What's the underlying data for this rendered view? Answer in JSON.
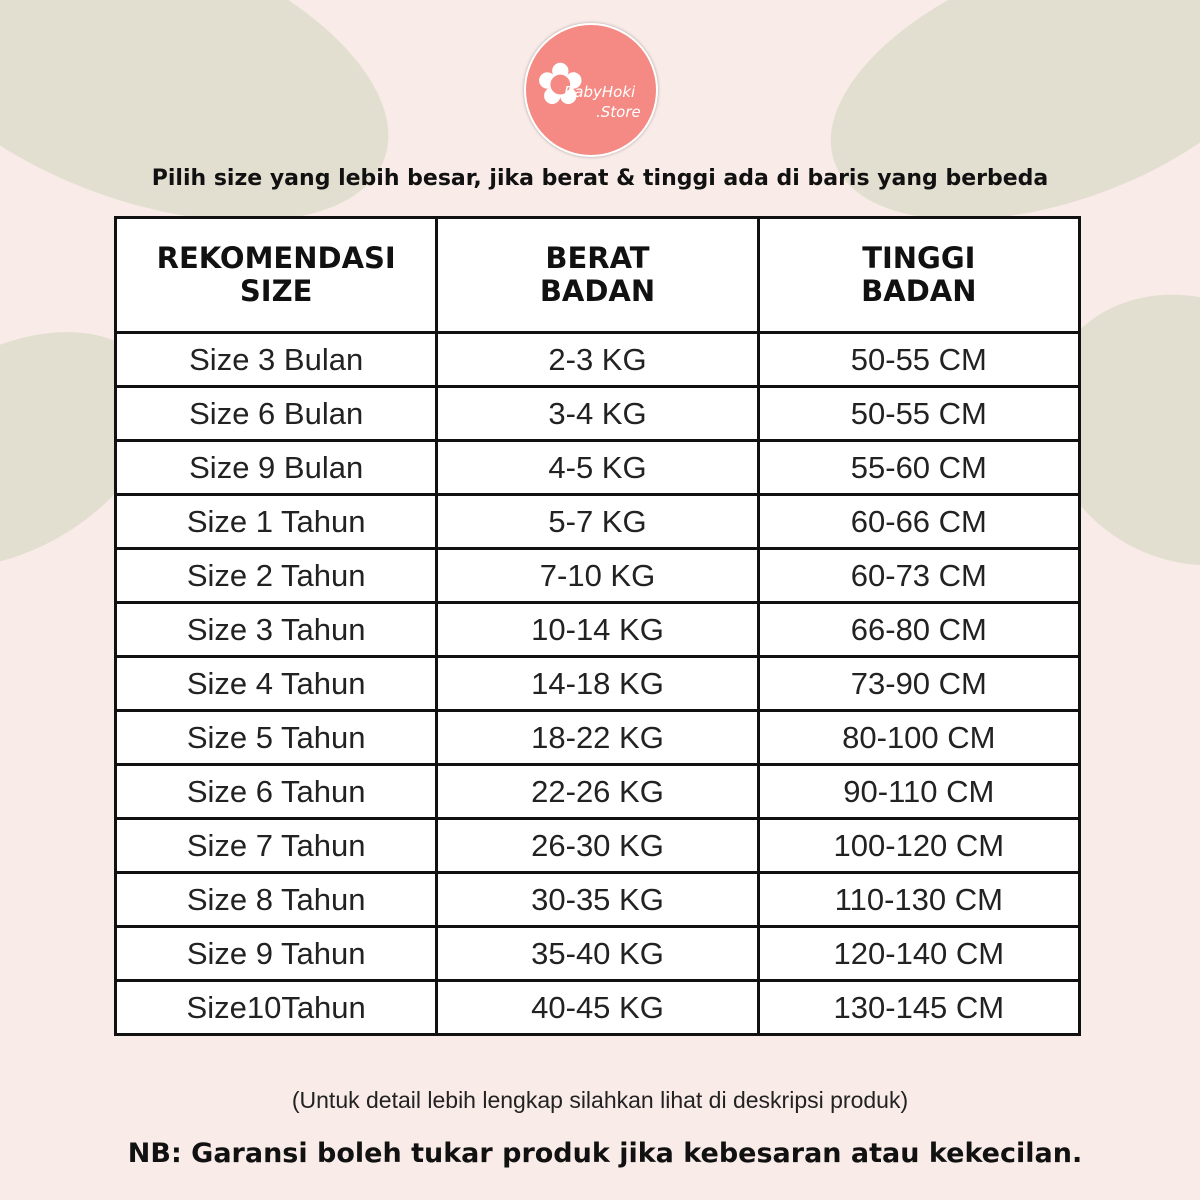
{
  "logo": {
    "line1": "BabyHoki",
    "line2": ".Store",
    "color": "#f48a83"
  },
  "subtitle": "Pilih size yang lebih besar, jika berat & tinggi ada di baris yang berbeda",
  "table": {
    "headers": [
      "REKOMENDASI SIZE",
      "BERAT BADAN",
      "TINGGI BADAN"
    ],
    "rows": [
      [
        "Size 3 Bulan",
        "2-3 KG",
        "50-55 CM"
      ],
      [
        "Size 6 Bulan",
        "3-4 KG",
        "50-55 CM"
      ],
      [
        "Size 9 Bulan",
        "4-5 KG",
        "55-60 CM"
      ],
      [
        "Size 1 Tahun",
        "5-7 KG",
        "60-66 CM"
      ],
      [
        "Size 2 Tahun",
        "7-10 KG",
        "60-73 CM"
      ],
      [
        "Size 3 Tahun",
        "10-14 KG",
        "66-80 CM"
      ],
      [
        "Size 4 Tahun",
        "14-18 KG",
        "73-90 CM"
      ],
      [
        "Size 5 Tahun",
        "18-22 KG",
        "80-100 CM"
      ],
      [
        "Size 6 Tahun",
        "22-26 KG",
        "90-110 CM"
      ],
      [
        "Size 7 Tahun",
        "26-30 KG",
        "100-120 CM"
      ],
      [
        "Size 8 Tahun",
        "30-35 KG",
        "110-130 CM"
      ],
      [
        "Size 9 Tahun",
        "35-40 KG",
        "120-140 CM"
      ],
      [
        "Size10Tahun",
        "40-45 KG",
        "130-145 CM"
      ]
    ]
  },
  "note": "(Untuk detail lebih lengkap silahkan lihat di deskripsi produk)",
  "nb": "NB: Garansi boleh tukar produk jika kebesaran atau kekecilan."
}
